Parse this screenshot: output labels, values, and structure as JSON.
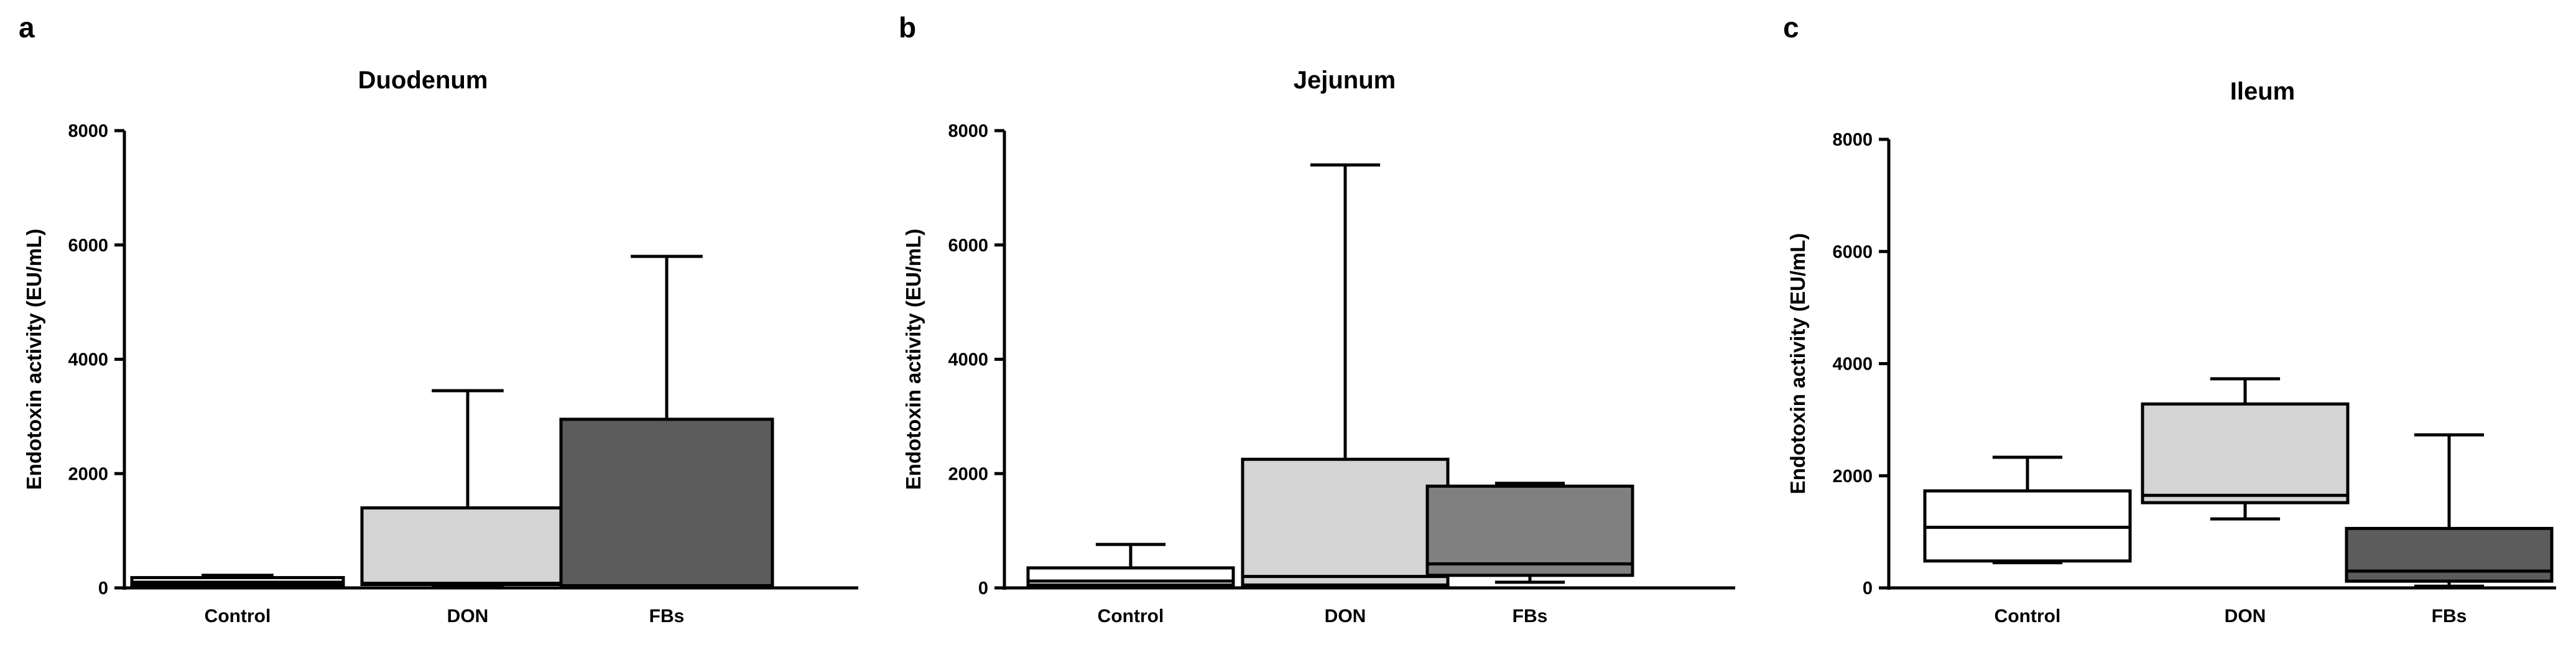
{
  "chart_data": [
    {
      "type": "box",
      "panel": "a",
      "title": "Duodenum",
      "ylabel": "Endotoxin activity (EU/mL)",
      "ylim": [
        0,
        8000
      ],
      "yticks": [
        "0",
        "2000",
        "4000",
        "6000",
        "8000"
      ],
      "categories": [
        "Control",
        "DON",
        "FBs"
      ],
      "colors": [
        "#ffffff",
        "#d4d4d4",
        "#5c5c5c"
      ],
      "boxes": [
        {
          "min": 50,
          "q1": 50,
          "median": 100,
          "q3": 180,
          "max": 220
        },
        {
          "min": 50,
          "q1": 60,
          "median": 80,
          "q3": 1400,
          "max": 3450
        },
        {
          "min": 30,
          "q1": 30,
          "median": 40,
          "q3": 2950,
          "max": 5800
        }
      ]
    },
    {
      "type": "box",
      "panel": "b",
      "title": "Jejunum",
      "ylabel": "Endotoxin activity (EU/mL)",
      "ylim": [
        0,
        8000
      ],
      "yticks": [
        "0",
        "2000",
        "4000",
        "6000",
        "8000"
      ],
      "categories": [
        "Control",
        "DON",
        "FBs"
      ],
      "colors": [
        "#ffffff",
        "#d4d4d4",
        "#808080"
      ],
      "boxes": [
        {
          "min": 30,
          "q1": 50,
          "median": 120,
          "q3": 350,
          "max": 760
        },
        {
          "min": 40,
          "q1": 50,
          "median": 200,
          "q3": 2250,
          "max": 7400
        },
        {
          "min": 100,
          "q1": 220,
          "median": 420,
          "q3": 1780,
          "max": 1830
        }
      ]
    },
    {
      "type": "box",
      "panel": "c",
      "title": "Ileum",
      "ylabel": "Endotoxin activity (EU/mL)",
      "ylim": [
        0,
        8000
      ],
      "yticks": [
        "0",
        "2000",
        "4000",
        "6000",
        "8000"
      ],
      "categories": [
        "Control",
        "DON",
        "FBs"
      ],
      "colors": [
        "#ffffff",
        "#d4d4d4",
        "#5c5c5c"
      ],
      "boxes": [
        {
          "min": 450,
          "q1": 480,
          "median": 1080,
          "q3": 1730,
          "max": 2330
        },
        {
          "min": 1230,
          "q1": 1520,
          "median": 1650,
          "q3": 3280,
          "max": 3730
        },
        {
          "min": 30,
          "q1": 120,
          "median": 300,
          "q3": 1060,
          "max": 2730
        }
      ]
    }
  ]
}
